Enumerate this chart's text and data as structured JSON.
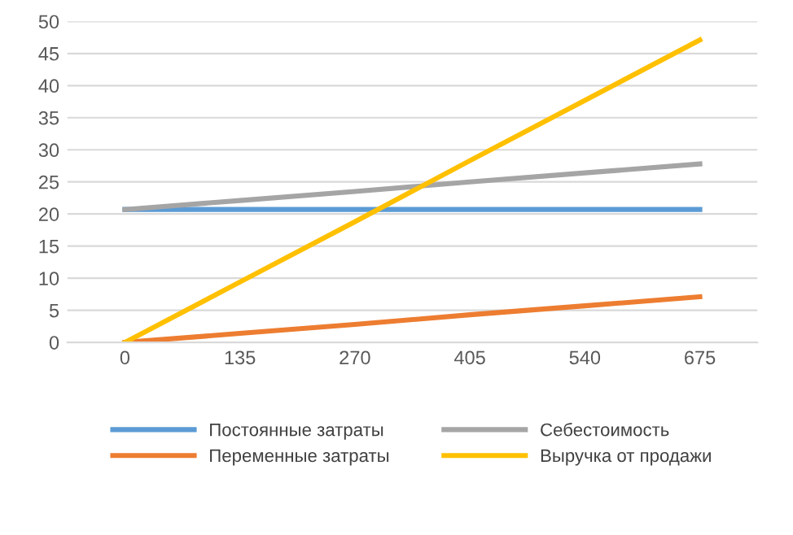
{
  "chart_data": {
    "type": "line",
    "categories": [
      "0",
      "135",
      "270",
      "405",
      "540",
      "675"
    ],
    "series": [
      {
        "name": "Постоянные затраты",
        "color": "#5b9bd5",
        "values": [
          20.7,
          20.7,
          20.7,
          20.7,
          20.7,
          20.7
        ]
      },
      {
        "name": "Переменные затраты",
        "color": "#ed7d31",
        "values": [
          0,
          1.4,
          2.8,
          4.3,
          5.7,
          7.1
        ]
      },
      {
        "name": "Себестоимость",
        "color": "#a5a5a5",
        "values": [
          20.7,
          22.1,
          23.5,
          25.0,
          26.4,
          27.8
        ]
      },
      {
        "name": "Выручка от продажи",
        "color": "#ffc000",
        "values": [
          0,
          9.4,
          18.8,
          28.3,
          37.7,
          47.1
        ]
      }
    ],
    "ylim": [
      0,
      50
    ],
    "yticks": [
      0,
      5,
      10,
      15,
      20,
      25,
      30,
      35,
      40,
      45,
      50
    ],
    "grid": "y",
    "legend": "bottom",
    "marker": "none",
    "line_style": "solid"
  }
}
